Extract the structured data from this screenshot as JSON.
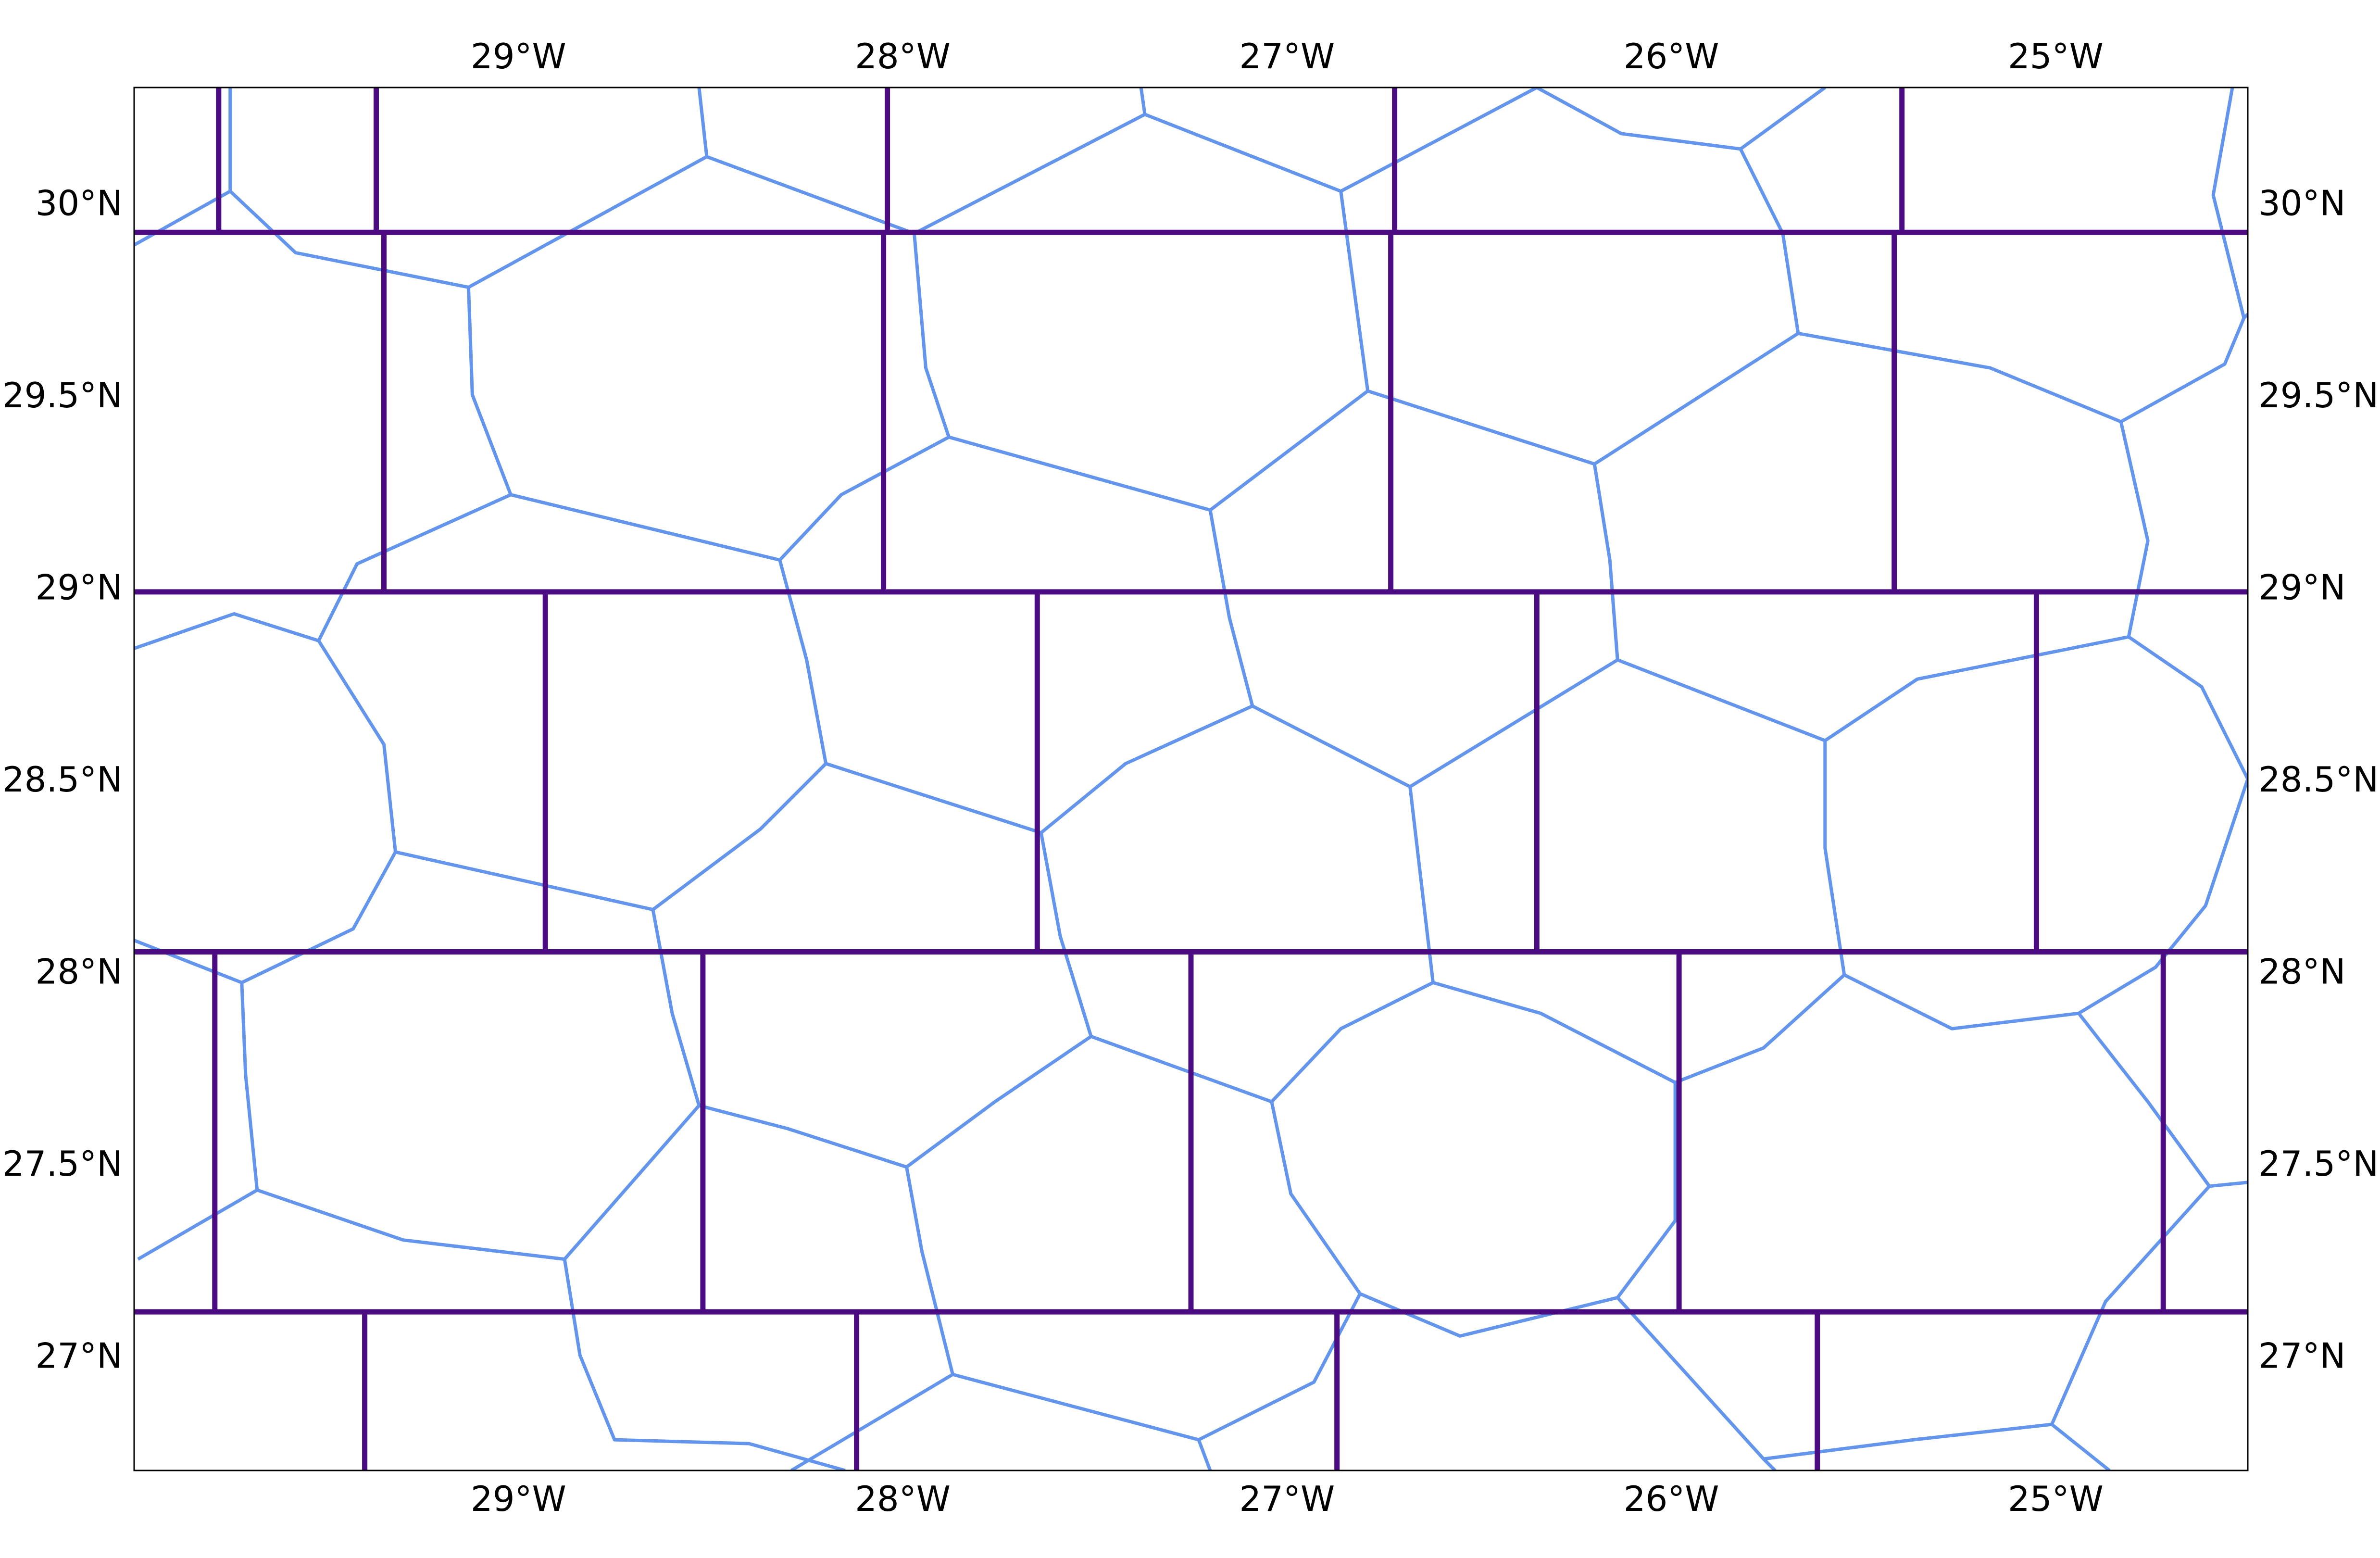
{
  "colors": {
    "background": "#ffffff",
    "frame": "#000000",
    "polygon_edges": "#6495ED",
    "grid_rows": "#4B0C82"
  },
  "map": {
    "projection": "plate-carree",
    "extent": {
      "lon_min": -30.0,
      "lon_max": -24.5,
      "lat_min": 26.7,
      "lat_max": 30.3
    },
    "lon_ticks": [
      {
        "value": -29,
        "label": "29°W"
      },
      {
        "value": -28,
        "label": "28°W"
      },
      {
        "value": -27,
        "label": "27°W"
      },
      {
        "value": -26,
        "label": "26°W"
      },
      {
        "value": -25,
        "label": "25°W"
      }
    ],
    "lat_ticks": [
      {
        "value": 30.0,
        "label": "30°N"
      },
      {
        "value": 29.5,
        "label": "29.5°N"
      },
      {
        "value": 29.0,
        "label": "29°N"
      },
      {
        "value": 28.5,
        "label": "28.5°N"
      },
      {
        "value": 28.0,
        "label": "28°N"
      },
      {
        "value": 27.5,
        "label": "27.5°N"
      },
      {
        "value": 27.0,
        "label": "27°N"
      }
    ],
    "grid_rows": {
      "boundaries_lat": [
        29.923,
        28.987,
        28.05,
        27.113
      ],
      "dividers_lon": [
        [
          -29.78,
          -29.37,
          -28.04,
          -26.72,
          -25.4
        ],
        [
          -29.35,
          -28.05,
          -26.73,
          -25.42
        ],
        [
          -28.93,
          -27.65,
          -26.35,
          -25.05
        ],
        [
          -29.79,
          -28.52,
          -27.25,
          -25.98,
          -24.72
        ],
        [
          -29.4,
          -28.12,
          -26.87,
          -25.62
        ]
      ]
    },
    "cell_edges": [
      [
        [
          -30.0,
          29.89
        ],
        [
          -29.75,
          30.03
        ],
        [
          -29.58,
          29.87
        ],
        [
          -29.13,
          29.78
        ]
      ],
      [
        [
          -29.75,
          30.03
        ],
        [
          -29.75,
          30.3
        ]
      ],
      [
        [
          -29.13,
          29.78
        ],
        [
          -28.51,
          30.12
        ],
        [
          -28.53,
          30.3
        ]
      ],
      [
        [
          -29.13,
          29.78
        ],
        [
          -29.12,
          29.5
        ],
        [
          -29.02,
          29.24
        ],
        [
          -28.32,
          29.07
        ]
      ],
      [
        [
          -28.51,
          30.12
        ],
        [
          -27.97,
          29.92
        ],
        [
          -27.37,
          30.23
        ],
        [
          -27.38,
          30.3
        ]
      ],
      [
        [
          -27.97,
          29.92
        ],
        [
          -27.94,
          29.57
        ],
        [
          -27.88,
          29.39
        ],
        [
          -27.2,
          29.2
        ]
      ],
      [
        [
          -27.37,
          30.23
        ],
        [
          -26.86,
          30.03
        ],
        [
          -26.79,
          29.51
        ],
        [
          -27.2,
          29.2
        ]
      ],
      [
        [
          -26.86,
          30.03
        ],
        [
          -26.35,
          30.3
        ]
      ],
      [
        [
          -26.35,
          30.3
        ],
        [
          -26.13,
          30.18
        ],
        [
          -25.82,
          30.14
        ],
        [
          -25.6,
          30.3
        ]
      ],
      [
        [
          -25.82,
          30.14
        ],
        [
          -25.71,
          29.92
        ],
        [
          -25.67,
          29.66
        ],
        [
          -25.17,
          29.57
        ],
        [
          -24.83,
          29.43
        ]
      ],
      [
        [
          -26.79,
          29.51
        ],
        [
          -26.2,
          29.32
        ],
        [
          -25.67,
          29.66
        ]
      ],
      [
        [
          -24.83,
          29.43
        ],
        [
          -24.76,
          29.12
        ],
        [
          -24.81,
          28.87
        ]
      ],
      [
        [
          -24.83,
          29.43
        ],
        [
          -24.56,
          29.58
        ],
        [
          -24.51,
          29.7
        ],
        [
          -24.5,
          29.71
        ]
      ],
      [
        [
          -24.51,
          29.7
        ],
        [
          -24.59,
          30.02
        ],
        [
          -24.54,
          30.3
        ]
      ],
      [
        [
          -29.52,
          28.86
        ],
        [
          -29.42,
          29.06
        ],
        [
          -29.02,
          29.24
        ]
      ],
      [
        [
          -28.32,
          29.07
        ],
        [
          -28.16,
          29.24
        ],
        [
          -27.88,
          29.39
        ]
      ],
      [
        [
          -30.0,
          28.84
        ],
        [
          -29.74,
          28.93
        ],
        [
          -29.52,
          28.86
        ],
        [
          -29.35,
          28.59
        ],
        [
          -29.32,
          28.31
        ],
        [
          -28.65,
          28.16
        ]
      ],
      [
        [
          -28.32,
          29.07
        ],
        [
          -28.25,
          28.81
        ],
        [
          -28.2,
          28.54
        ],
        [
          -27.64,
          28.36
        ]
      ],
      [
        [
          -28.65,
          28.16
        ],
        [
          -28.37,
          28.37
        ],
        [
          -28.2,
          28.54
        ]
      ],
      [
        [
          -27.2,
          29.2
        ],
        [
          -27.15,
          28.92
        ],
        [
          -27.09,
          28.69
        ],
        [
          -26.68,
          28.48
        ]
      ],
      [
        [
          -27.64,
          28.36
        ],
        [
          -27.42,
          28.54
        ],
        [
          -27.09,
          28.69
        ]
      ],
      [
        [
          -26.2,
          29.32
        ],
        [
          -26.16,
          29.07
        ],
        [
          -26.14,
          28.81
        ],
        [
          -25.6,
          28.6
        ]
      ],
      [
        [
          -26.68,
          28.48
        ],
        [
          -26.14,
          28.81
        ]
      ],
      [
        [
          -25.6,
          28.6
        ],
        [
          -25.36,
          28.76
        ],
        [
          -24.81,
          28.87
        ],
        [
          -24.62,
          28.74
        ],
        [
          -24.5,
          28.5
        ]
      ],
      [
        [
          -30.0,
          28.08
        ],
        [
          -29.72,
          27.97
        ],
        [
          -29.71,
          27.73
        ],
        [
          -29.68,
          27.43
        ],
        [
          -29.3,
          27.3
        ],
        [
          -28.88,
          27.25
        ]
      ],
      [
        [
          -29.32,
          28.31
        ],
        [
          -29.43,
          28.11
        ],
        [
          -29.72,
          27.97
        ]
      ],
      [
        [
          -28.65,
          28.16
        ],
        [
          -28.6,
          27.89
        ],
        [
          -28.53,
          27.65
        ],
        [
          -28.3,
          27.59
        ],
        [
          -27.99,
          27.49
        ]
      ],
      [
        [
          -27.64,
          28.36
        ],
        [
          -27.59,
          28.09
        ],
        [
          -27.51,
          27.83
        ],
        [
          -27.04,
          27.66
        ]
      ],
      [
        [
          -26.68,
          28.48
        ],
        [
          -26.62,
          27.97
        ],
        [
          -26.34,
          27.89
        ],
        [
          -25.99,
          27.71
        ]
      ],
      [
        [
          -25.6,
          28.6
        ],
        [
          -25.6,
          28.32
        ],
        [
          -25.55,
          27.99
        ],
        [
          -25.27,
          27.85
        ],
        [
          -24.94,
          27.89
        ]
      ],
      [
        [
          -24.5,
          28.5
        ],
        [
          -24.61,
          28.17
        ],
        [
          -24.74,
          28.01
        ],
        [
          -24.94,
          27.89
        ]
      ],
      [
        [
          -29.68,
          27.43
        ],
        [
          -29.99,
          27.25
        ]
      ],
      [
        [
          -28.53,
          27.65
        ],
        [
          -28.88,
          27.25
        ]
      ],
      [
        [
          -27.99,
          27.49
        ],
        [
          -27.76,
          27.66
        ],
        [
          -27.51,
          27.83
        ]
      ],
      [
        [
          -27.04,
          27.66
        ],
        [
          -26.86,
          27.85
        ],
        [
          -26.62,
          27.97
        ]
      ],
      [
        [
          -25.55,
          27.99
        ],
        [
          -25.76,
          27.8
        ],
        [
          -25.99,
          27.71
        ]
      ],
      [
        [
          -24.94,
          27.89
        ],
        [
          -24.76,
          27.66
        ],
        [
          -24.6,
          27.44
        ],
        [
          -24.5,
          27.45
        ]
      ],
      [
        [
          -27.99,
          27.49
        ],
        [
          -27.95,
          27.27
        ],
        [
          -27.87,
          26.95
        ],
        [
          -27.23,
          26.78
        ],
        [
          -27.2,
          26.7
        ]
      ],
      [
        [
          -27.04,
          27.66
        ],
        [
          -26.99,
          27.42
        ],
        [
          -26.81,
          27.16
        ],
        [
          -26.55,
          27.05
        ],
        [
          -26.14,
          27.15
        ],
        [
          -25.99,
          27.35
        ],
        [
          -25.99,
          27.71
        ]
      ],
      [
        [
          -28.88,
          27.25
        ],
        [
          -28.84,
          27.0
        ],
        [
          -28.75,
          26.78
        ],
        [
          -28.4,
          26.77
        ],
        [
          -28.15,
          26.7
        ]
      ],
      [
        [
          -27.87,
          26.95
        ],
        [
          -28.29,
          26.7
        ]
      ],
      [
        [
          -27.23,
          26.78
        ],
        [
          -26.93,
          26.93
        ],
        [
          -26.81,
          27.16
        ]
      ],
      [
        [
          -26.14,
          27.15
        ],
        [
          -25.76,
          26.73
        ],
        [
          -25.73,
          26.7
        ]
      ],
      [
        [
          -25.76,
          26.73
        ],
        [
          -25.37,
          26.78
        ],
        [
          -25.01,
          26.82
        ]
      ],
      [
        [
          -24.6,
          27.44
        ],
        [
          -24.87,
          27.14
        ],
        [
          -25.01,
          26.82
        ],
        [
          -24.86,
          26.7
        ]
      ]
    ]
  }
}
